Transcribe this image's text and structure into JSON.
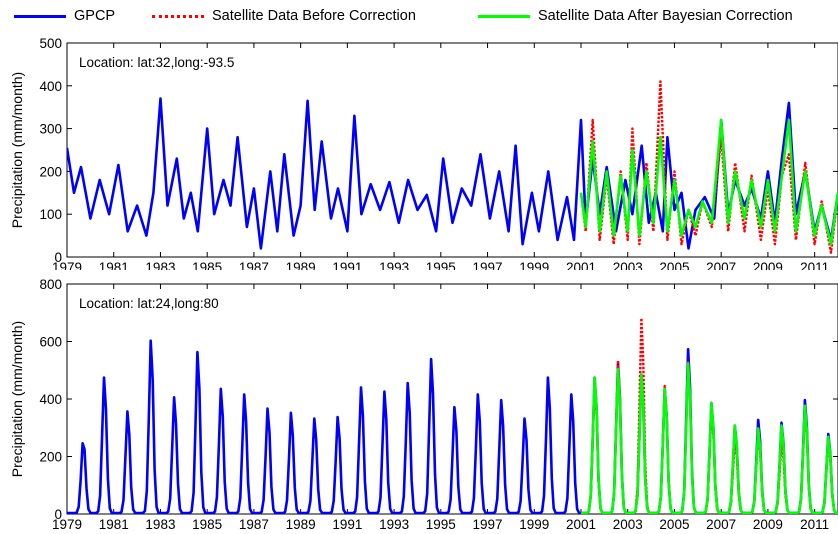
{
  "legend": [
    {
      "label": "GPCP",
      "color": "#0000ff",
      "style": "solid"
    },
    {
      "label": "Satellite Data Before Correction",
      "color": "#ff0000",
      "style": "dotted"
    },
    {
      "label": "Satellite Data After Bayesian Correction",
      "color": "#00ff00",
      "style": "solid"
    }
  ],
  "chart_data": [
    {
      "type": "line",
      "annotation": "Location:  lat:32,long:-93.5",
      "ylabel": "Precipitation (mm/month)",
      "xlim": [
        1979,
        2012
      ],
      "ylim": [
        0,
        500
      ],
      "yticks": [
        0,
        100,
        200,
        300,
        400,
        500
      ],
      "xticks": [
        "1979",
        "1981",
        "1983",
        "1985",
        "1987",
        "1989",
        "1991",
        "1993",
        "1995",
        "1997",
        "1999",
        "2001",
        "2003",
        "2005",
        "2007",
        "2009",
        "2011"
      ],
      "grid": false,
      "legend_position": "top",
      "series": [
        {
          "name": "GPCP",
          "color": "#0000ff",
          "points": [
            [
              1979.0,
              255
            ],
            [
              1979.3,
              150
            ],
            [
              1979.6,
              210
            ],
            [
              1980.0,
              90
            ],
            [
              1980.4,
              180
            ],
            [
              1980.8,
              100
            ],
            [
              1981.2,
              215
            ],
            [
              1981.6,
              60
            ],
            [
              1982.0,
              120
            ],
            [
              1982.4,
              50
            ],
            [
              1982.7,
              150
            ],
            [
              1983.0,
              370
            ],
            [
              1983.3,
              120
            ],
            [
              1983.7,
              230
            ],
            [
              1984.0,
              90
            ],
            [
              1984.3,
              150
            ],
            [
              1984.6,
              60
            ],
            [
              1985.0,
              300
            ],
            [
              1985.3,
              100
            ],
            [
              1985.7,
              180
            ],
            [
              1986.0,
              120
            ],
            [
              1986.3,
              280
            ],
            [
              1986.7,
              70
            ],
            [
              1987.0,
              160
            ],
            [
              1987.3,
              20
            ],
            [
              1987.7,
              200
            ],
            [
              1988.0,
              60
            ],
            [
              1988.3,
              240
            ],
            [
              1988.7,
              50
            ],
            [
              1989.0,
              120
            ],
            [
              1989.3,
              365
            ],
            [
              1989.6,
              110
            ],
            [
              1989.9,
              270
            ],
            [
              1990.3,
              90
            ],
            [
              1990.6,
              160
            ],
            [
              1991.0,
              60
            ],
            [
              1991.3,
              330
            ],
            [
              1991.6,
              100
            ],
            [
              1992.0,
              170
            ],
            [
              1992.4,
              110
            ],
            [
              1992.8,
              175
            ],
            [
              1993.2,
              80
            ],
            [
              1993.6,
              180
            ],
            [
              1994.0,
              110
            ],
            [
              1994.4,
              145
            ],
            [
              1994.8,
              60
            ],
            [
              1995.1,
              230
            ],
            [
              1995.5,
              80
            ],
            [
              1995.9,
              160
            ],
            [
              1996.3,
              120
            ],
            [
              1996.7,
              240
            ],
            [
              1997.1,
              90
            ],
            [
              1997.5,
              200
            ],
            [
              1997.9,
              60
            ],
            [
              1998.2,
              260
            ],
            [
              1998.5,
              30
            ],
            [
              1998.9,
              150
            ],
            [
              1999.2,
              60
            ],
            [
              1999.6,
              200
            ],
            [
              2000.0,
              40
            ],
            [
              2000.4,
              140
            ],
            [
              2000.7,
              40
            ],
            [
              2001.0,
              320
            ],
            [
              2001.2,
              80
            ],
            [
              2001.5,
              230
            ],
            [
              2001.8,
              100
            ],
            [
              2002.1,
              210
            ],
            [
              2002.5,
              60
            ],
            [
              2002.9,
              180
            ],
            [
              2003.2,
              100
            ],
            [
              2003.6,
              260
            ],
            [
              2003.9,
              80
            ],
            [
              2004.2,
              150
            ],
            [
              2004.5,
              60
            ],
            [
              2004.7,
              280
            ],
            [
              2005.0,
              110
            ],
            [
              2005.3,
              150
            ],
            [
              2005.6,
              20
            ],
            [
              2005.9,
              110
            ],
            [
              2006.3,
              140
            ],
            [
              2006.7,
              90
            ],
            [
              2007.0,
              320
            ],
            [
              2007.3,
              100
            ],
            [
              2007.6,
              180
            ],
            [
              2008.0,
              120
            ],
            [
              2008.3,
              160
            ],
            [
              2008.7,
              90
            ],
            [
              2009.0,
              200
            ],
            [
              2009.3,
              80
            ],
            [
              2009.6,
              230
            ],
            [
              2009.9,
              360
            ],
            [
              2010.2,
              100
            ],
            [
              2010.6,
              200
            ],
            [
              2011.0,
              60
            ],
            [
              2011.3,
              120
            ],
            [
              2011.7,
              40
            ],
            [
              2012.0,
              150
            ]
          ]
        },
        {
          "name": "Satellite Data Before Correction",
          "color": "#ff0000",
          "points": [
            [
              2001.0,
              150
            ],
            [
              2001.2,
              60
            ],
            [
              2001.5,
              320
            ],
            [
              2001.8,
              40
            ],
            [
              2002.1,
              190
            ],
            [
              2002.4,
              30
            ],
            [
              2002.7,
              200
            ],
            [
              2003.0,
              40
            ],
            [
              2003.2,
              300
            ],
            [
              2003.5,
              30
            ],
            [
              2003.8,
              220
            ],
            [
              2004.1,
              60
            ],
            [
              2004.4,
              410
            ],
            [
              2004.7,
              40
            ],
            [
              2005.0,
              200
            ],
            [
              2005.3,
              30
            ],
            [
              2005.6,
              110
            ],
            [
              2005.9,
              50
            ],
            [
              2006.2,
              130
            ],
            [
              2006.6,
              70
            ],
            [
              2007.0,
              280
            ],
            [
              2007.3,
              60
            ],
            [
              2007.6,
              220
            ],
            [
              2008.0,
              60
            ],
            [
              2008.3,
              190
            ],
            [
              2008.7,
              40
            ],
            [
              2009.0,
              160
            ],
            [
              2009.3,
              30
            ],
            [
              2009.6,
              190
            ],
            [
              2009.9,
              240
            ],
            [
              2010.2,
              40
            ],
            [
              2010.6,
              220
            ],
            [
              2011.0,
              30
            ],
            [
              2011.3,
              130
            ],
            [
              2011.7,
              10
            ],
            [
              2012.0,
              150
            ]
          ]
        },
        {
          "name": "Satellite Data After Bayesian Correction",
          "color": "#00ff00",
          "points": [
            [
              2001.0,
              150
            ],
            [
              2001.2,
              70
            ],
            [
              2001.5,
              270
            ],
            [
              2001.8,
              60
            ],
            [
              2002.1,
              200
            ],
            [
              2002.4,
              50
            ],
            [
              2002.7,
              190
            ],
            [
              2003.0,
              60
            ],
            [
              2003.2,
              250
            ],
            [
              2003.5,
              50
            ],
            [
              2003.8,
              200
            ],
            [
              2004.1,
              80
            ],
            [
              2004.4,
              280
            ],
            [
              2004.7,
              60
            ],
            [
              2005.0,
              180
            ],
            [
              2005.3,
              50
            ],
            [
              2005.6,
              110
            ],
            [
              2005.9,
              70
            ],
            [
              2006.2,
              130
            ],
            [
              2006.6,
              80
            ],
            [
              2007.0,
              320
            ],
            [
              2007.3,
              80
            ],
            [
              2007.6,
              200
            ],
            [
              2008.0,
              90
            ],
            [
              2008.3,
              180
            ],
            [
              2008.7,
              70
            ],
            [
              2009.0,
              180
            ],
            [
              2009.3,
              60
            ],
            [
              2009.6,
              190
            ],
            [
              2009.9,
              320
            ],
            [
              2010.2,
              60
            ],
            [
              2010.6,
              200
            ],
            [
              2011.0,
              50
            ],
            [
              2011.3,
              120
            ],
            [
              2011.7,
              30
            ],
            [
              2012.0,
              150
            ]
          ]
        }
      ]
    },
    {
      "type": "line",
      "annotation": "Location: lat:24,long:80",
      "ylabel": "Precipitation (mm/month)",
      "xlim": [
        1979,
        2012
      ],
      "ylim": [
        0,
        800
      ],
      "yticks": [
        0,
        200,
        400,
        600,
        800
      ],
      "xticks": [
        "1979",
        "1981",
        "1983",
        "1985",
        "1987",
        "1989",
        "1991",
        "1993",
        "1995",
        "1997",
        "1999",
        "2001",
        "2003",
        "2005",
        "2007",
        "2009",
        "2011"
      ],
      "grid": false,
      "legend_position": "top",
      "series": [
        {
          "name": "GPCP",
          "color": "#0000ff",
          "peaks": [
            [
              1979.7,
              260
            ],
            [
              1980.6,
              480
            ],
            [
              1981.6,
              360
            ],
            [
              1982.6,
              610
            ],
            [
              1983.6,
              410
            ],
            [
              1984.6,
              570
            ],
            [
              1985.6,
              440
            ],
            [
              1986.6,
              420
            ],
            [
              1987.6,
              370
            ],
            [
              1988.6,
              355
            ],
            [
              1989.6,
              335
            ],
            [
              1990.6,
              340
            ],
            [
              1991.6,
              445
            ],
            [
              1992.6,
              430
            ],
            [
              1993.6,
              460
            ],
            [
              1994.6,
              545
            ],
            [
              1995.6,
              375
            ],
            [
              1996.6,
              420
            ],
            [
              1997.6,
              400
            ],
            [
              1998.6,
              335
            ],
            [
              1999.6,
              480
            ],
            [
              2000.6,
              420
            ],
            [
              2001.6,
              480
            ],
            [
              2002.6,
              530
            ],
            [
              2003.6,
              490
            ],
            [
              2004.6,
              440
            ],
            [
              2005.6,
              580
            ],
            [
              2006.6,
              390
            ],
            [
              2007.6,
              310
            ],
            [
              2008.6,
              330
            ],
            [
              2009.6,
              320
            ],
            [
              2010.6,
              400
            ],
            [
              2011.6,
              280
            ]
          ]
        },
        {
          "name": "Satellite Data Before Correction",
          "color": "#ff0000",
          "peaks": [
            [
              2001.6,
              450
            ],
            [
              2002.6,
              540
            ],
            [
              2003.6,
              690
            ],
            [
              2004.6,
              450
            ],
            [
              2005.6,
              540
            ],
            [
              2006.6,
              360
            ],
            [
              2007.6,
              260
            ],
            [
              2008.6,
              280
            ],
            [
              2009.6,
              250
            ],
            [
              2010.6,
              360
            ],
            [
              2011.6,
              250
            ]
          ]
        },
        {
          "name": "Satellite Data After Bayesian Correction",
          "color": "#00ff00",
          "peaks": [
            [
              2001.6,
              480
            ],
            [
              2002.6,
              510
            ],
            [
              2003.6,
              490
            ],
            [
              2004.6,
              440
            ],
            [
              2005.6,
              530
            ],
            [
              2006.6,
              390
            ],
            [
              2007.6,
              310
            ],
            [
              2008.6,
              300
            ],
            [
              2009.6,
              310
            ],
            [
              2010.6,
              380
            ],
            [
              2011.6,
              270
            ]
          ]
        }
      ]
    }
  ]
}
